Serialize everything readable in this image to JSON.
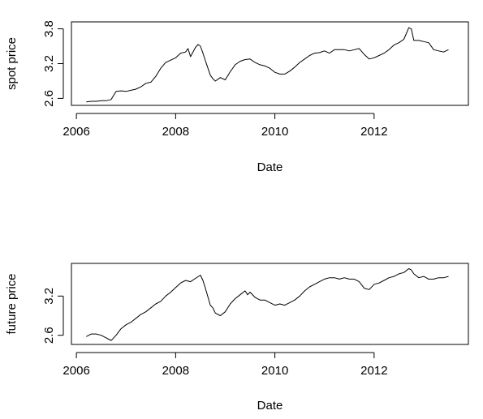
{
  "chart_data": [
    {
      "type": "line",
      "title": "",
      "xlabel": "Date",
      "ylabel": "spot price",
      "xlim": [
        2005.9,
        2013.9
      ],
      "ylim": [
        2.48,
        3.92
      ],
      "xticks": [
        2006,
        2008,
        2010,
        2012
      ],
      "xtick_labels": [
        "2006",
        "2008",
        "2010",
        "2012"
      ],
      "yticks": [
        2.6,
        3.2,
        3.8
      ],
      "ytick_labels": [
        "2.6",
        "3.2",
        "3.8"
      ],
      "grid": false,
      "series": [
        {
          "x": [
            2006.2,
            2006.3,
            2006.4,
            2006.5,
            2006.6,
            2006.7,
            2006.8,
            2006.9,
            2007.0,
            2007.1,
            2007.2,
            2007.3,
            2007.4,
            2007.5,
            2007.6,
            2007.7,
            2007.8,
            2007.9,
            2008.0,
            2008.1,
            2008.2,
            2008.25,
            2008.3,
            2008.4,
            2008.45,
            2008.5,
            2008.55,
            2008.6,
            2008.7,
            2008.75,
            2008.8,
            2008.9,
            2009.0,
            2009.1,
            2009.2,
            2009.3,
            2009.4,
            2009.5,
            2009.6,
            2009.7,
            2009.8,
            2009.9,
            2010.0,
            2010.1,
            2010.2,
            2010.3,
            2010.4,
            2010.5,
            2010.6,
            2010.7,
            2010.8,
            2010.9,
            2011.0,
            2011.1,
            2011.2,
            2011.3,
            2011.4,
            2011.5,
            2011.6,
            2011.7,
            2011.8,
            2011.9,
            2012.0,
            2012.1,
            2012.2,
            2012.3,
            2012.4,
            2012.5,
            2012.6,
            2012.7,
            2012.75,
            2012.8,
            2012.9,
            2013.0,
            2013.1,
            2013.2,
            2013.3,
            2013.4,
            2013.5
          ],
          "y": [
            2.54,
            2.55,
            2.55,
            2.56,
            2.56,
            2.58,
            2.72,
            2.73,
            2.72,
            2.74,
            2.76,
            2.8,
            2.86,
            2.88,
            2.98,
            3.12,
            3.22,
            3.26,
            3.3,
            3.38,
            3.4,
            3.46,
            3.32,
            3.48,
            3.53,
            3.5,
            3.38,
            3.25,
            3.0,
            2.94,
            2.9,
            2.96,
            2.92,
            3.06,
            3.18,
            3.24,
            3.27,
            3.28,
            3.22,
            3.18,
            3.16,
            3.12,
            3.05,
            3.02,
            3.02,
            3.07,
            3.14,
            3.22,
            3.28,
            3.34,
            3.38,
            3.39,
            3.42,
            3.38,
            3.44,
            3.44,
            3.44,
            3.42,
            3.44,
            3.46,
            3.36,
            3.28,
            3.3,
            3.34,
            3.38,
            3.44,
            3.52,
            3.56,
            3.62,
            3.82,
            3.8,
            3.6,
            3.6,
            3.58,
            3.56,
            3.44,
            3.42,
            3.4,
            3.44
          ]
        }
      ]
    },
    {
      "type": "line",
      "title": "",
      "xlabel": "Date",
      "ylabel": "future price",
      "xlim": [
        2005.9,
        2013.9
      ],
      "ylim": [
        2.46,
        3.7
      ],
      "xticks": [
        2006,
        2008,
        2010,
        2012
      ],
      "xtick_labels": [
        "2006",
        "2008",
        "2010",
        "2012"
      ],
      "yticks": [
        2.6,
        3.2
      ],
      "ytick_labels": [
        "2.6",
        "3.2"
      ],
      "grid": false,
      "series": [
        {
          "x": [
            2006.2,
            2006.3,
            2006.4,
            2006.5,
            2006.6,
            2006.65,
            2006.7,
            2006.8,
            2006.9,
            2007.0,
            2007.1,
            2007.2,
            2007.3,
            2007.4,
            2007.5,
            2007.6,
            2007.7,
            2007.8,
            2007.9,
            2008.0,
            2008.1,
            2008.2,
            2008.3,
            2008.4,
            2008.5,
            2008.55,
            2008.6,
            2008.7,
            2008.75,
            2008.8,
            2008.9,
            2009.0,
            2009.1,
            2009.2,
            2009.3,
            2009.4,
            2009.45,
            2009.5,
            2009.6,
            2009.7,
            2009.8,
            2009.9,
            2010.0,
            2010.1,
            2010.2,
            2010.3,
            2010.4,
            2010.5,
            2010.6,
            2010.7,
            2010.8,
            2010.9,
            2011.0,
            2011.1,
            2011.2,
            2011.3,
            2011.4,
            2011.5,
            2011.6,
            2011.7,
            2011.8,
            2011.9,
            2012.0,
            2012.1,
            2012.2,
            2012.3,
            2012.4,
            2012.5,
            2012.6,
            2012.7,
            2012.75,
            2012.8,
            2012.9,
            2013.0,
            2013.1,
            2013.2,
            2013.3,
            2013.4,
            2013.5
          ],
          "y": [
            2.58,
            2.62,
            2.62,
            2.6,
            2.56,
            2.54,
            2.52,
            2.6,
            2.7,
            2.76,
            2.8,
            2.86,
            2.92,
            2.96,
            3.02,
            3.08,
            3.12,
            3.2,
            3.26,
            3.33,
            3.4,
            3.44,
            3.42,
            3.47,
            3.52,
            3.44,
            3.32,
            3.06,
            3.02,
            2.94,
            2.9,
            2.96,
            3.08,
            3.16,
            3.22,
            3.28,
            3.22,
            3.26,
            3.18,
            3.14,
            3.14,
            3.1,
            3.06,
            3.08,
            3.06,
            3.1,
            3.14,
            3.2,
            3.28,
            3.34,
            3.38,
            3.42,
            3.46,
            3.48,
            3.48,
            3.46,
            3.48,
            3.46,
            3.46,
            3.42,
            3.32,
            3.3,
            3.38,
            3.4,
            3.44,
            3.48,
            3.5,
            3.54,
            3.56,
            3.62,
            3.6,
            3.54,
            3.48,
            3.5,
            3.46,
            3.46,
            3.48,
            3.48,
            3.5
          ]
        }
      ]
    }
  ]
}
